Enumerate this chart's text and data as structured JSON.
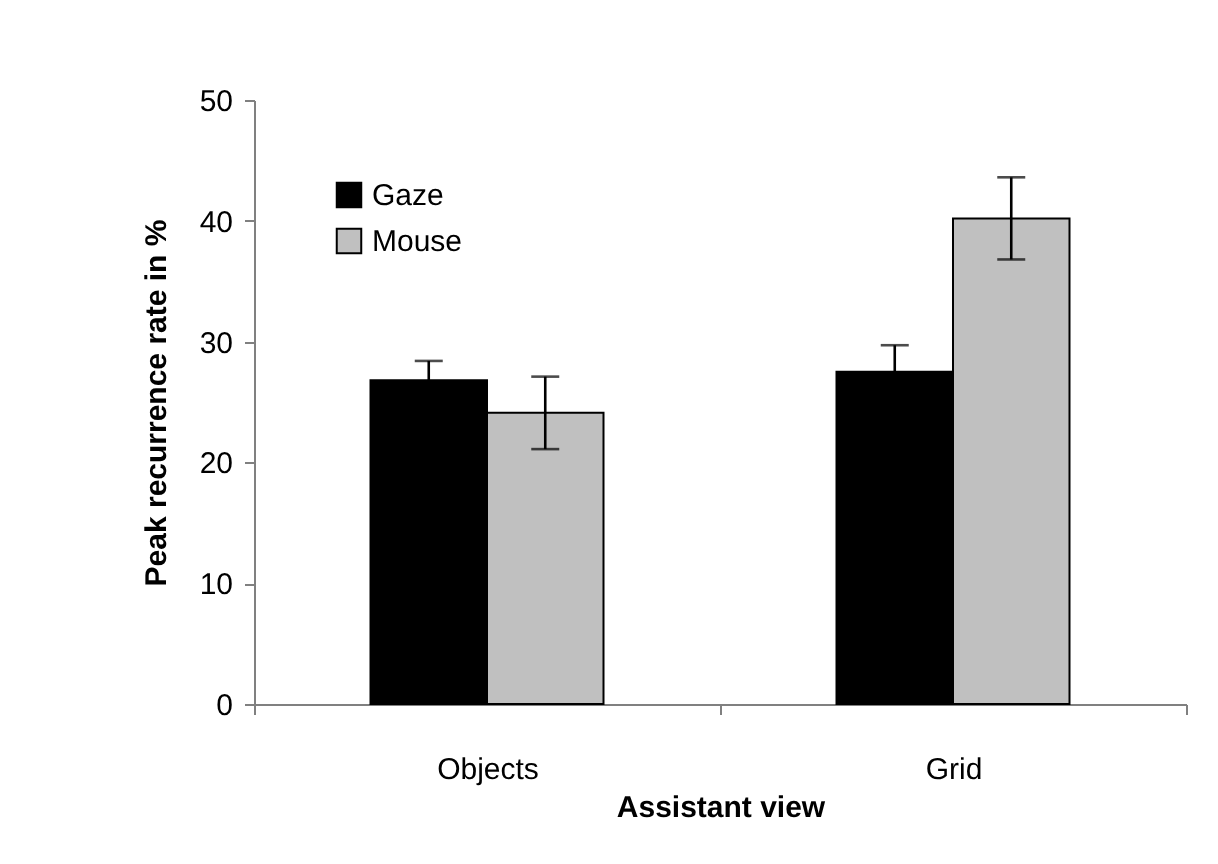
{
  "chart_data": {
    "type": "bar",
    "xlabel": "Assistant view",
    "ylabel": "Peak recurrence rate in %",
    "categories": [
      "Objects",
      "Grid"
    ],
    "series": [
      {
        "name": "Gaze",
        "color": "#000000",
        "values": [
          26.8,
          27.5
        ],
        "errors": [
          1.6,
          2.2
        ]
      },
      {
        "name": "Mouse",
        "color": "#c0c0c0",
        "values": [
          24.1,
          40.2
        ],
        "errors": [
          3.0,
          3.4
        ]
      }
    ],
    "ylim": [
      0,
      50
    ],
    "yticks": [
      0,
      10,
      20,
      30,
      40,
      50
    ],
    "grid": false,
    "legend": "top left"
  }
}
